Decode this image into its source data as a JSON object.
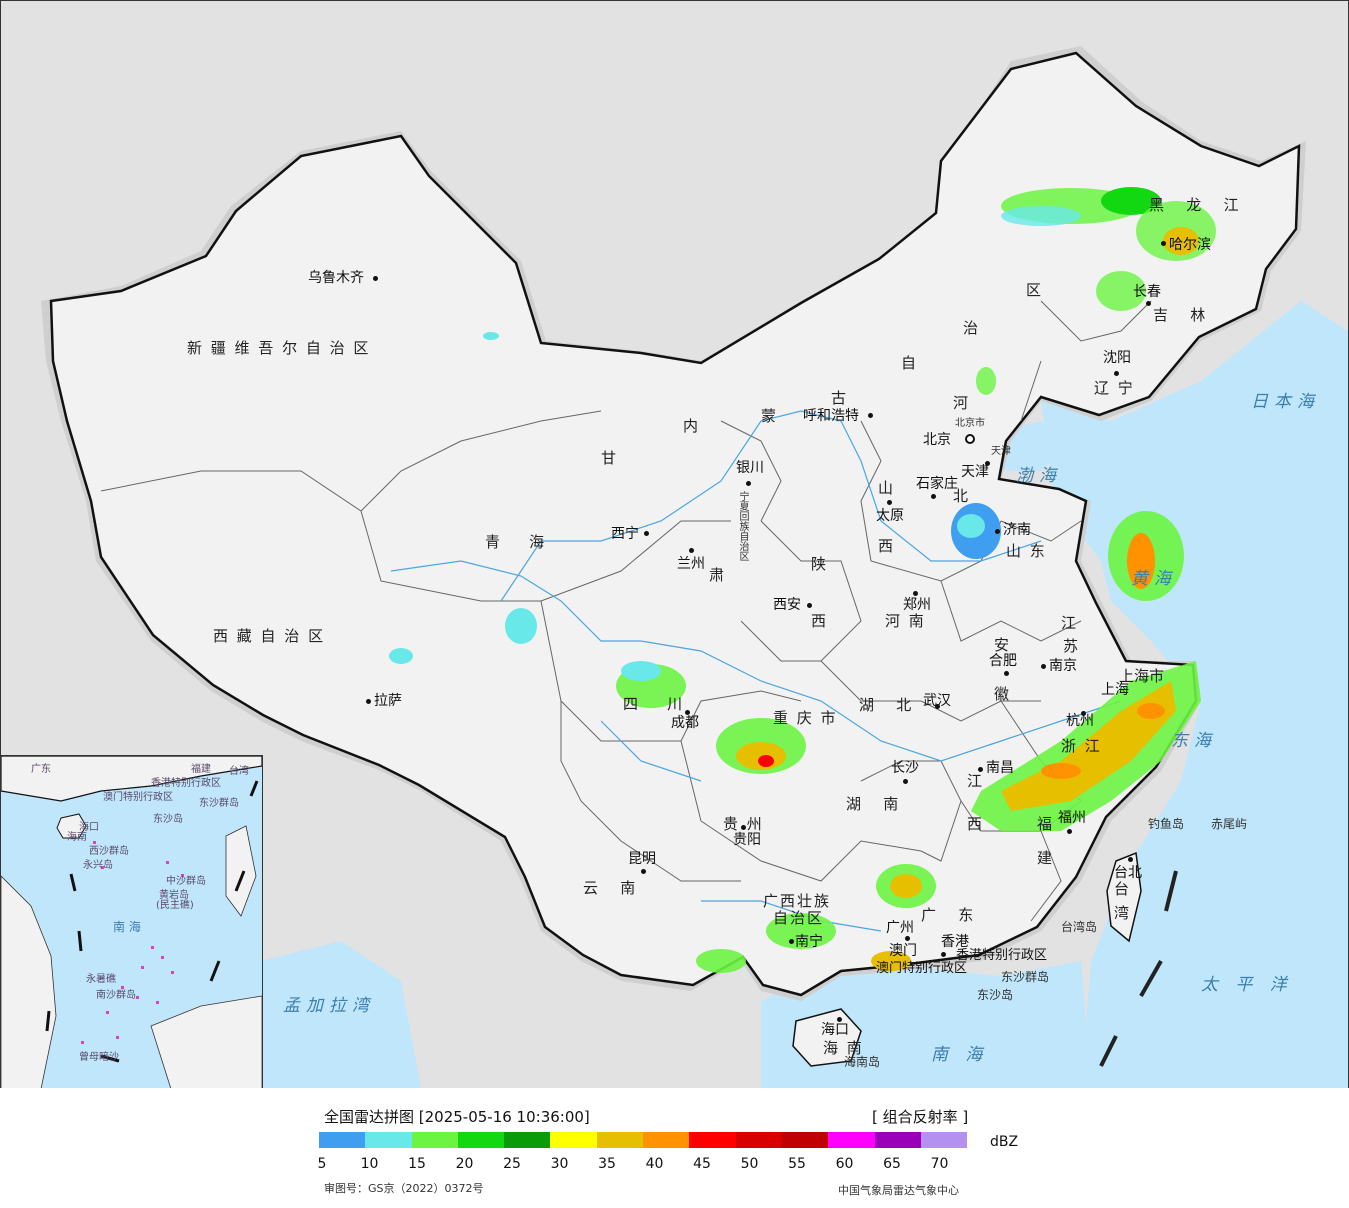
{
  "map": {
    "province_labels": [
      {
        "id": "xinjiang",
        "text": "新 疆 维 吾 尔 自 治 区"
      },
      {
        "id": "xizang",
        "text": "西 藏 自 治 区"
      },
      {
        "id": "qinghai",
        "text": "青    海"
      },
      {
        "id": "gansu",
        "text": "甘"
      },
      {
        "id": "su",
        "text": "肃"
      },
      {
        "id": "neimeng1",
        "text": "内"
      },
      {
        "id": "neimeng2",
        "text": "蒙"
      },
      {
        "id": "neimeng3",
        "text": "古"
      },
      {
        "id": "neimeng4",
        "text": "自"
      },
      {
        "id": "neimeng5",
        "text": "治"
      },
      {
        "id": "neimeng6",
        "text": "区"
      },
      {
        "id": "hlj",
        "text": "黑   龙   江"
      },
      {
        "id": "jilin",
        "text": "吉   林"
      },
      {
        "id": "liaoning",
        "text": "辽 宁"
      },
      {
        "id": "hebei1",
        "text": "河"
      },
      {
        "id": "hebei2",
        "text": "北"
      },
      {
        "id": "shanxi1",
        "text": "山"
      },
      {
        "id": "shanxi2",
        "text": "西"
      },
      {
        "id": "shandong",
        "text": "山 东"
      },
      {
        "id": "shaanxi1",
        "text": "陕"
      },
      {
        "id": "shaanxi2",
        "text": "西"
      },
      {
        "id": "henan",
        "text": "河 南"
      },
      {
        "id": "sichuan",
        "text": "四    川"
      },
      {
        "id": "hubei",
        "text": "湖   北"
      },
      {
        "id": "anhui1",
        "text": "安"
      },
      {
        "id": "anhui2",
        "text": "徽"
      },
      {
        "id": "jiangsu1",
        "text": "江"
      },
      {
        "id": "jiangsu2",
        "text": "苏"
      },
      {
        "id": "zhejiang",
        "text": "浙 江"
      },
      {
        "id": "chongqing",
        "text": "重 庆 市"
      },
      {
        "id": "guizhou",
        "text": "贵 州"
      },
      {
        "id": "hunan",
        "text": "湖   南"
      },
      {
        "id": "jiangxi1",
        "text": "江"
      },
      {
        "id": "jiangxi2",
        "text": "西"
      },
      {
        "id": "fujian1",
        "text": "福"
      },
      {
        "id": "fujian2",
        "text": "建"
      },
      {
        "id": "yunnan",
        "text": "云   南"
      },
      {
        "id": "guangxi1",
        "text": "广西壮族"
      },
      {
        "id": "guangxi2",
        "text": "自治区"
      },
      {
        "id": "guangdong",
        "text": "广   东"
      },
      {
        "id": "hainan",
        "text": "海 南"
      },
      {
        "id": "taiwan",
        "text": "台 湾"
      },
      {
        "id": "ningxia",
        "text": "宁夏回族自治区"
      },
      {
        "id": "shanghai",
        "text": "上海市"
      },
      {
        "id": "beijing_city",
        "text": "北京市"
      },
      {
        "id": "tianjin_city",
        "text": "天津"
      },
      {
        "id": "hk_sar",
        "text": "香港特别行政区"
      },
      {
        "id": "macau_sar",
        "text": "澳门特别行政区"
      }
    ],
    "cities": [
      {
        "id": "urumqi",
        "text": "乌鲁木齐"
      },
      {
        "id": "lhasa",
        "text": "拉萨"
      },
      {
        "id": "xining",
        "text": "西宁"
      },
      {
        "id": "lanzhou",
        "text": "兰州"
      },
      {
        "id": "yinchuan",
        "text": "银川"
      },
      {
        "id": "hohhot",
        "text": "呼和浩特"
      },
      {
        "id": "harbin",
        "text": "哈尔滨"
      },
      {
        "id": "changchun",
        "text": "长春"
      },
      {
        "id": "shenyang",
        "text": "沈阳"
      },
      {
        "id": "beijing",
        "text": "北京"
      },
      {
        "id": "tianjin",
        "text": "天津"
      },
      {
        "id": "shijiazhuang",
        "text": "石家庄"
      },
      {
        "id": "taiyuan",
        "text": "太原"
      },
      {
        "id": "jinan",
        "text": "济南"
      },
      {
        "id": "zhengzhou",
        "text": "郑州"
      },
      {
        "id": "xian",
        "text": "西安"
      },
      {
        "id": "chengdu",
        "text": "成都"
      },
      {
        "id": "wuhan",
        "text": "武汉"
      },
      {
        "id": "hefei",
        "text": "合肥"
      },
      {
        "id": "nanjing",
        "text": "南京"
      },
      {
        "id": "shanghai",
        "text": "上海"
      },
      {
        "id": "hangzhou",
        "text": "杭州"
      },
      {
        "id": "changsha",
        "text": "长沙"
      },
      {
        "id": "nanchang",
        "text": "南昌"
      },
      {
        "id": "fuzhou",
        "text": "福州"
      },
      {
        "id": "guiyang",
        "text": "贵阳"
      },
      {
        "id": "kunming",
        "text": "昆明"
      },
      {
        "id": "nanning",
        "text": "南宁"
      },
      {
        "id": "guangzhou",
        "text": "广州"
      },
      {
        "id": "xianggang",
        "text": "香港"
      },
      {
        "id": "aomen",
        "text": "澳门"
      },
      {
        "id": "haikou",
        "text": "海口"
      },
      {
        "id": "taibei",
        "text": "台北"
      }
    ],
    "seas": [
      {
        "id": "bohai",
        "text": "渤海"
      },
      {
        "id": "huanghai",
        "text": "黄海"
      },
      {
        "id": "donghai",
        "text": "东海"
      },
      {
        "id": "riben",
        "text": "日本海"
      },
      {
        "id": "taipingyang",
        "text": "太 平 洋"
      },
      {
        "id": "nanhai",
        "text": "南 海"
      },
      {
        "id": "mengjiala",
        "text": "孟加拉湾"
      }
    ],
    "islands": [
      {
        "id": "diaoyu",
        "text": "钓鱼岛"
      },
      {
        "id": "chiwei",
        "text": "赤尾屿"
      },
      {
        "id": "taiwandao",
        "text": "台湾岛"
      },
      {
        "id": "dongsha_qd",
        "text": "东沙群岛"
      },
      {
        "id": "dongsha_d",
        "text": "东沙岛"
      },
      {
        "id": "hainandao",
        "text": "海南岛"
      }
    ],
    "inset_labels": [
      {
        "id": "i1",
        "text": "广东"
      },
      {
        "id": "i2",
        "text": "福建"
      },
      {
        "id": "i3",
        "text": "台湾"
      },
      {
        "id": "i4",
        "text": "香港特别行政区"
      },
      {
        "id": "i5",
        "text": "澳门特别行政区"
      },
      {
        "id": "i6",
        "text": "东沙群岛"
      },
      {
        "id": "i7",
        "text": "东沙岛"
      },
      {
        "id": "i8",
        "text": "海口"
      },
      {
        "id": "i9",
        "text": "海南"
      },
      {
        "id": "i10",
        "text": "西沙群岛"
      },
      {
        "id": "i11",
        "text": "永兴岛"
      },
      {
        "id": "i12",
        "text": "中沙群岛"
      },
      {
        "id": "i13",
        "text": "黄岩岛"
      },
      {
        "id": "i14",
        "text": "(民主礁)"
      },
      {
        "id": "i15",
        "text": "南  海"
      },
      {
        "id": "i16",
        "text": "永暑礁"
      },
      {
        "id": "i17",
        "text": "南沙群岛"
      },
      {
        "id": "i18",
        "text": "曾母暗沙"
      }
    ]
  },
  "legend": {
    "title": "全国雷达拼图 [2025-05-16 10:36:00]",
    "product": "[ 组合反射率 ]",
    "unit": "dBZ",
    "ticks": [
      "5",
      "10",
      "15",
      "20",
      "25",
      "30",
      "35",
      "40",
      "45",
      "50",
      "55",
      "60",
      "65",
      "70"
    ],
    "colors": [
      "#3f9ef0",
      "#68e8e8",
      "#6cf442",
      "#12d812",
      "#0a9a0a",
      "#ffff00",
      "#e6bf00",
      "#ff9200",
      "#ff0000",
      "#d80000",
      "#c00000",
      "#ff00ff",
      "#9a00b8",
      "#b490f0"
    ],
    "approval": "审图号：GS京（2022）0372号",
    "credit": "中国气象局雷达气象中心"
  },
  "colors": {
    "land": "#f2f2f2",
    "neighbor": "#e2e2e2",
    "water": "#bfe6fa",
    "river": "#4aa6e0",
    "border": "#111111"
  }
}
